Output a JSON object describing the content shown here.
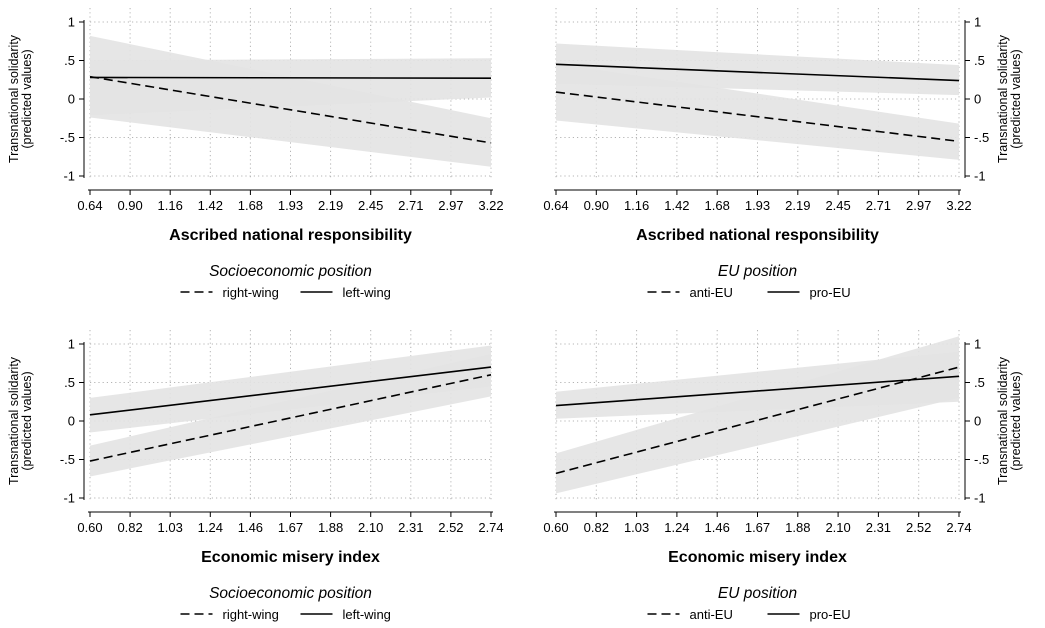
{
  "chart_data": [
    {
      "type": "line",
      "xlabel": "Ascribed national responsibility",
      "ylabel_line1": "Transnational solidarity",
      "ylabel_line2": "(predicted values)",
      "y_axis_side": "left",
      "xlim": [
        0.64,
        3.22
      ],
      "ylim": [
        -1,
        1
      ],
      "x_ticks": [
        "0.64",
        "0.90",
        "1.16",
        "1.42",
        "1.68",
        "1.93",
        "2.19",
        "2.45",
        "2.71",
        "2.97",
        "3.22"
      ],
      "y_ticks": [
        {
          "value": 1,
          "label": "1"
        },
        {
          "value": 0.5,
          "label": ".5"
        },
        {
          "value": 0,
          "label": "0"
        },
        {
          "value": -0.5,
          "label": "-.5"
        },
        {
          "value": -1,
          "label": "-1"
        }
      ],
      "grid": true,
      "legend_title": "Socioeconomic position",
      "legend": [
        {
          "label": "right-wing",
          "style": "dashed"
        },
        {
          "label": "left-wing",
          "style": "solid"
        }
      ],
      "series": [
        {
          "name": "right-wing",
          "style": "dashed",
          "x": [
            0.64,
            3.22
          ],
          "y": [
            0.29,
            -0.57
          ],
          "ci_lower": [
            -0.24,
            -0.88
          ],
          "ci_upper": [
            0.82,
            -0.25
          ]
        },
        {
          "name": "left-wing",
          "style": "solid",
          "x": [
            0.64,
            3.22
          ],
          "y": [
            0.28,
            0.27
          ],
          "ci_lower": [
            -0.21,
            0.02
          ],
          "ci_upper": [
            0.5,
            0.53
          ]
        }
      ]
    },
    {
      "type": "line",
      "xlabel": "Ascribed national responsibility",
      "ylabel_line1": "Transnational solidarity",
      "ylabel_line2": "(predicted values)",
      "y_axis_side": "right",
      "xlim": [
        0.64,
        3.22
      ],
      "ylim": [
        -1,
        1
      ],
      "x_ticks": [
        "0.64",
        "0.90",
        "1.16",
        "1.42",
        "1.68",
        "1.93",
        "2.19",
        "2.45",
        "2.71",
        "2.97",
        "3.22"
      ],
      "y_ticks": [
        {
          "value": 1,
          "label": "1"
        },
        {
          "value": 0.5,
          "label": ".5"
        },
        {
          "value": 0,
          "label": "0"
        },
        {
          "value": -0.5,
          "label": "-.5"
        },
        {
          "value": -1,
          "label": "-1"
        }
      ],
      "grid": true,
      "legend_title": "EU position",
      "legend": [
        {
          "label": "anti-EU",
          "style": "dashed"
        },
        {
          "label": "pro-EU",
          "style": "solid"
        }
      ],
      "series": [
        {
          "name": "anti-EU",
          "style": "dashed",
          "x": [
            0.64,
            3.22
          ],
          "y": [
            0.09,
            -0.55
          ],
          "ci_lower": [
            -0.28,
            -0.79
          ],
          "ci_upper": [
            0.46,
            -0.32
          ]
        },
        {
          "name": "pro-EU",
          "style": "solid",
          "x": [
            0.64,
            3.22
          ],
          "y": [
            0.45,
            0.24
          ],
          "ci_lower": [
            0.2,
            0.05
          ],
          "ci_upper": [
            0.72,
            0.44
          ]
        }
      ]
    },
    {
      "type": "line",
      "xlabel": "Economic misery index",
      "ylabel_line1": "Transnational solidarity",
      "ylabel_line2": "(predicted values)",
      "y_axis_side": "left",
      "xlim": [
        0.6,
        2.74
      ],
      "ylim": [
        -1,
        1
      ],
      "x_ticks": [
        "0.60",
        "0.82",
        "1.03",
        "1.24",
        "1.46",
        "1.67",
        "1.88",
        "2.10",
        "2.31",
        "2.52",
        "2.74"
      ],
      "y_ticks": [
        {
          "value": 1,
          "label": "1"
        },
        {
          "value": 0.5,
          "label": ".5"
        },
        {
          "value": 0,
          "label": "0"
        },
        {
          "value": -0.5,
          "label": "-.5"
        },
        {
          "value": -1,
          "label": "-1"
        }
      ],
      "grid": true,
      "legend_title": "Socioeconomic position",
      "legend": [
        {
          "label": "right-wing",
          "style": "dashed"
        },
        {
          "label": "left-wing",
          "style": "solid"
        }
      ],
      "series": [
        {
          "name": "right-wing",
          "style": "dashed",
          "x": [
            0.6,
            2.74
          ],
          "y": [
            -0.52,
            0.6
          ],
          "ci_lower": [
            -0.72,
            0.32
          ],
          "ci_upper": [
            -0.32,
            0.87
          ]
        },
        {
          "name": "left-wing",
          "style": "solid",
          "x": [
            0.6,
            2.74
          ],
          "y": [
            0.08,
            0.7
          ],
          "ci_lower": [
            -0.15,
            0.45
          ],
          "ci_upper": [
            0.3,
            0.98
          ]
        }
      ]
    },
    {
      "type": "line",
      "xlabel": "Economic misery index",
      "ylabel_line1": "Transnational solidarity",
      "ylabel_line2": "(predicted values)",
      "y_axis_side": "right",
      "xlim": [
        0.6,
        2.74
      ],
      "ylim": [
        -1,
        1
      ],
      "x_ticks": [
        "0.60",
        "0.82",
        "1.03",
        "1.24",
        "1.46",
        "1.67",
        "1.88",
        "2.10",
        "2.31",
        "2.52",
        "2.74"
      ],
      "y_ticks": [
        {
          "value": 1,
          "label": "1"
        },
        {
          "value": 0.5,
          "label": ".5"
        },
        {
          "value": 0,
          "label": "0"
        },
        {
          "value": -0.5,
          "label": "-.5"
        },
        {
          "value": -1,
          "label": "-1"
        }
      ],
      "grid": true,
      "legend_title": "EU position",
      "legend": [
        {
          "label": "anti-EU",
          "style": "dashed"
        },
        {
          "label": "pro-EU",
          "style": "solid"
        }
      ],
      "series": [
        {
          "name": "anti-EU",
          "style": "dashed",
          "x": [
            0.6,
            2.74
          ],
          "y": [
            -0.68,
            0.7
          ],
          "ci_lower": [
            -0.94,
            0.3
          ],
          "ci_upper": [
            -0.42,
            1.1
          ]
        },
        {
          "name": "pro-EU",
          "style": "solid",
          "x": [
            0.6,
            2.74
          ],
          "y": [
            0.2,
            0.58
          ],
          "ci_lower": [
            0.03,
            0.25
          ],
          "ci_upper": [
            0.38,
            0.9
          ]
        }
      ]
    }
  ],
  "colors": {
    "line": "#000000",
    "ci_band": "#e3e3e3",
    "grid": "#b4b4b4",
    "axis": "#000000"
  }
}
